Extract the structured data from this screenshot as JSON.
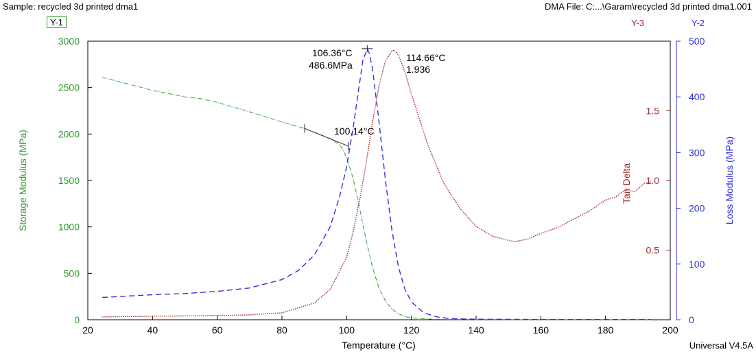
{
  "header": {
    "sample": "Sample: recycled 3d printed dma1",
    "file": "DMA File: C:...\\Garam\\recycled 3d printed dma1.001",
    "version": "Universal V4.5A"
  },
  "axis_tags": {
    "y1": "Y-1",
    "y2": "Y-2",
    "y3": "Y-3"
  },
  "colors": {
    "storage": "#2e9a2e",
    "loss": "#2f2fe0",
    "tan": "#a52a2a",
    "axis": "#000000"
  },
  "chart_data": {
    "type": "line",
    "xlabel": "Temperature (°C)",
    "xlim": [
      20,
      200
    ],
    "xticks": [
      20,
      40,
      60,
      80,
      100,
      120,
      140,
      160,
      180,
      200
    ],
    "grid": false,
    "axes": {
      "y1": {
        "label": "Storage Modulus (MPa)",
        "lim": [
          0,
          3000
        ],
        "ticks": [
          0,
          500,
          1000,
          1500,
          2000,
          2500,
          3000
        ],
        "side": "left"
      },
      "y2": {
        "label": "Loss Modulus (MPa)",
        "lim": [
          0,
          500
        ],
        "ticks": [
          0,
          100,
          200,
          300,
          400,
          500
        ],
        "side": "right"
      },
      "y3": {
        "label": "",
        "lim": [
          0,
          2
        ],
        "ticks": [
          0.5,
          1.0,
          1.5
        ],
        "tick_labels": [
          "0.5",
          "1.0",
          "1.5"
        ],
        "side": "right-inner"
      }
    },
    "series": [
      {
        "axis": "y1",
        "style": "dash-dot",
        "x": [
          24.5,
          30,
          40,
          50,
          55,
          60,
          70,
          80,
          87,
          90,
          95,
          98,
          100,
          102,
          104,
          106,
          108,
          110,
          112,
          114,
          116,
          118,
          120,
          125,
          130,
          140,
          160,
          180,
          194
        ],
        "y": [
          2610,
          2560,
          2470,
          2400,
          2380,
          2340,
          2240,
          2130,
          2060,
          2020,
          1950,
          1880,
          1750,
          1520,
          1200,
          860,
          560,
          340,
          200,
          115,
          65,
          35,
          20,
          8,
          4,
          2,
          1,
          1,
          1
        ]
      },
      {
        "axis": "y2",
        "style": "dashed",
        "x": [
          24.5,
          40,
          50,
          60,
          70,
          80,
          85,
          90,
          95,
          98,
          100,
          102,
          104,
          105,
          106.36,
          107,
          108,
          110,
          112,
          114,
          116,
          118,
          120,
          124,
          128,
          132,
          140,
          160,
          180,
          194
        ],
        "y": [
          40,
          45,
          47,
          51,
          57,
          72,
          88,
          116,
          168,
          225,
          275,
          345,
          425,
          465,
          486.6,
          478,
          450,
          355,
          250,
          160,
          95,
          55,
          32,
          12,
          5,
          2,
          1,
          0.5,
          0.5,
          0.5
        ]
      },
      {
        "name": "Tan Delta",
        "axis": "y3",
        "style": "dotted",
        "x": [
          24.5,
          40,
          60,
          70,
          80,
          90,
          95,
          100,
          102,
          104,
          106,
          108,
          110,
          112,
          114,
          114.66,
          116,
          118,
          120,
          125,
          130,
          135,
          140,
          145,
          150,
          152,
          156,
          160,
          165,
          170,
          175,
          180,
          183,
          186,
          189,
          192,
          194
        ],
        "y": [
          0.02,
          0.025,
          0.03,
          0.035,
          0.05,
          0.12,
          0.22,
          0.45,
          0.63,
          0.86,
          1.12,
          1.42,
          1.68,
          1.86,
          1.93,
          1.936,
          1.9,
          1.78,
          1.62,
          1.26,
          0.98,
          0.8,
          0.67,
          0.6,
          0.57,
          0.56,
          0.58,
          0.62,
          0.66,
          0.72,
          0.78,
          0.86,
          0.88,
          0.93,
          0.92,
          0.98,
          0.99
        ]
      }
    ],
    "annotations": [
      {
        "kind": "onset",
        "series": 0,
        "x": 100.14,
        "y": 1900,
        "text": "100.14°C",
        "mark_x": [
          87,
          100.5
        ]
      },
      {
        "kind": "peak",
        "series": 1,
        "x": 106.36,
        "y": 486.6,
        "lines": [
          "106.36°C",
          "486.6MPa"
        ]
      },
      {
        "kind": "peak",
        "series": 2,
        "x": 114.66,
        "y": 1.936,
        "lines": [
          "114.66°C",
          "1.936"
        ]
      }
    ]
  }
}
